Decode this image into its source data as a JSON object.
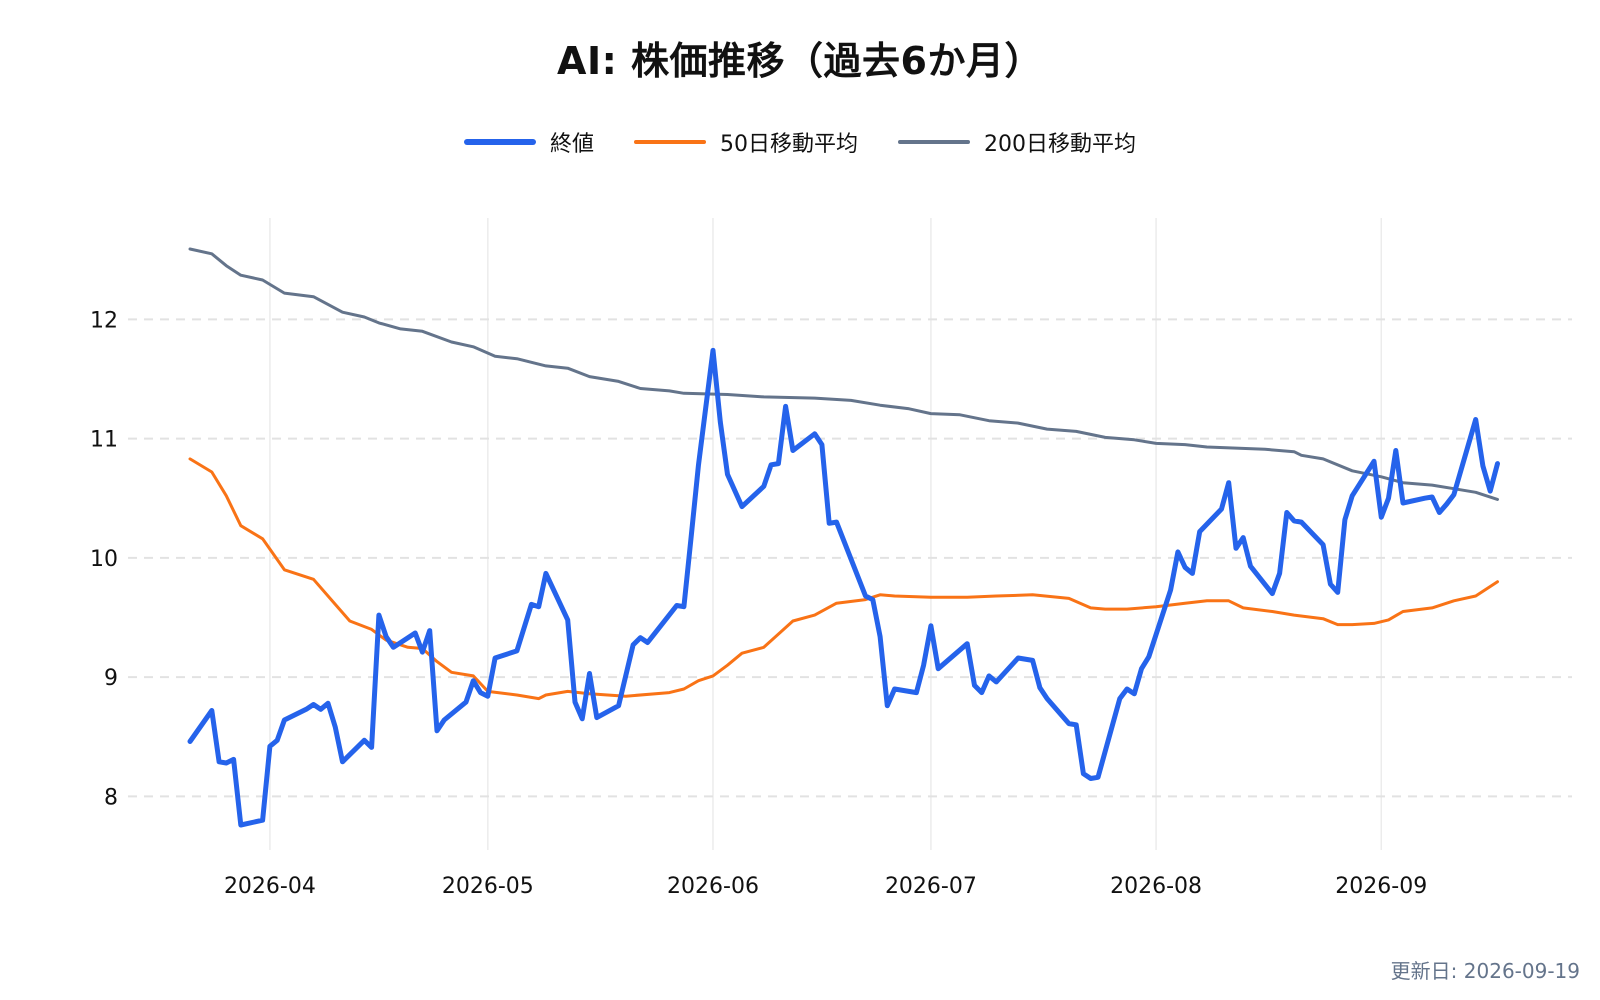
{
  "title": "AI: 株価推移（過去6か月）",
  "updated": "更新日: 2026-09-19",
  "chart_data": {
    "type": "line",
    "title": "AI: 株価推移（過去6か月）",
    "xlabel": "",
    "ylabel": "",
    "x_range": [
      "2026-03-21",
      "2026-09-19"
    ],
    "ylim": [
      7.55,
      12.85
    ],
    "yticks": [
      8,
      9,
      10,
      11,
      12
    ],
    "xticks": [
      {
        "date": "2026-04-01",
        "label": "2026-04"
      },
      {
        "date": "2026-05-01",
        "label": "2026-05"
      },
      {
        "date": "2026-06-01",
        "label": "2026-06"
      },
      {
        "date": "2026-07-01",
        "label": "2026-07"
      },
      {
        "date": "2026-08-01",
        "label": "2026-08"
      },
      {
        "date": "2026-09-01",
        "label": "2026-09"
      }
    ],
    "grid": true,
    "legend_position": "top-center",
    "series": [
      {
        "name": "終値",
        "color": "#2563eb",
        "width": 5,
        "points": [
          [
            "2026-03-21",
            8.46
          ],
          [
            "2026-03-24",
            8.72
          ],
          [
            "2026-03-25",
            8.29
          ],
          [
            "2026-03-26",
            8.28
          ],
          [
            "2026-03-27",
            8.31
          ],
          [
            "2026-03-28",
            7.76
          ],
          [
            "2026-03-31",
            7.8
          ],
          [
            "2026-04-01",
            8.42
          ],
          [
            "2026-04-02",
            8.47
          ],
          [
            "2026-04-03",
            8.64
          ],
          [
            "2026-04-06",
            8.73
          ],
          [
            "2026-04-07",
            8.77
          ],
          [
            "2026-04-08",
            8.73
          ],
          [
            "2026-04-09",
            8.78
          ],
          [
            "2026-04-10",
            8.58
          ],
          [
            "2026-04-11",
            8.29
          ],
          [
            "2026-04-14",
            8.47
          ],
          [
            "2026-04-15",
            8.41
          ],
          [
            "2026-04-16",
            9.52
          ],
          [
            "2026-04-17",
            9.34
          ],
          [
            "2026-04-18",
            9.25
          ],
          [
            "2026-04-21",
            9.37
          ],
          [
            "2026-04-22",
            9.21
          ],
          [
            "2026-04-23",
            9.39
          ],
          [
            "2026-04-24",
            8.55
          ],
          [
            "2026-04-25",
            8.64
          ],
          [
            "2026-04-28",
            8.79
          ],
          [
            "2026-04-29",
            8.97
          ],
          [
            "2026-04-30",
            8.87
          ],
          [
            "2026-05-01",
            8.84
          ],
          [
            "2026-05-02",
            9.16
          ],
          [
            "2026-05-05",
            9.22
          ],
          [
            "2026-05-07",
            9.61
          ],
          [
            "2026-05-08",
            9.59
          ],
          [
            "2026-05-09",
            9.87
          ],
          [
            "2026-05-12",
            9.48
          ],
          [
            "2026-05-13",
            8.79
          ],
          [
            "2026-05-14",
            8.65
          ],
          [
            "2026-05-15",
            9.03
          ],
          [
            "2026-05-16",
            8.66
          ],
          [
            "2026-05-19",
            8.76
          ],
          [
            "2026-05-21",
            9.27
          ],
          [
            "2026-05-22",
            9.33
          ],
          [
            "2026-05-23",
            9.29
          ],
          [
            "2026-05-27",
            9.6
          ],
          [
            "2026-05-28",
            9.59
          ],
          [
            "2026-05-29",
            10.18
          ],
          [
            "2026-05-30",
            10.78
          ],
          [
            "2026-06-01",
            11.74
          ],
          [
            "2026-06-02",
            11.14
          ],
          [
            "2026-06-03",
            10.7
          ],
          [
            "2026-06-05",
            10.43
          ],
          [
            "2026-06-08",
            10.6
          ],
          [
            "2026-06-09",
            10.78
          ],
          [
            "2026-06-10",
            10.79
          ],
          [
            "2026-06-11",
            11.27
          ],
          [
            "2026-06-12",
            10.9
          ],
          [
            "2026-06-15",
            11.04
          ],
          [
            "2026-06-16",
            10.95
          ],
          [
            "2026-06-17",
            10.29
          ],
          [
            "2026-06-18",
            10.3
          ],
          [
            "2026-06-22",
            9.68
          ],
          [
            "2026-06-23",
            9.65
          ],
          [
            "2026-06-24",
            9.34
          ],
          [
            "2026-06-25",
            8.76
          ],
          [
            "2026-06-26",
            8.9
          ],
          [
            "2026-06-29",
            8.87
          ],
          [
            "2026-06-30",
            9.1
          ],
          [
            "2026-07-01",
            9.43
          ],
          [
            "2026-07-02",
            9.07
          ],
          [
            "2026-07-06",
            9.28
          ],
          [
            "2026-07-07",
            8.93
          ],
          [
            "2026-07-08",
            8.87
          ],
          [
            "2026-07-09",
            9.01
          ],
          [
            "2026-07-10",
            8.96
          ],
          [
            "2026-07-13",
            9.16
          ],
          [
            "2026-07-15",
            9.14
          ],
          [
            "2026-07-16",
            8.91
          ],
          [
            "2026-07-17",
            8.82
          ],
          [
            "2026-07-20",
            8.61
          ],
          [
            "2026-07-21",
            8.6
          ],
          [
            "2026-07-22",
            8.19
          ],
          [
            "2026-07-23",
            8.15
          ],
          [
            "2026-07-24",
            8.16
          ],
          [
            "2026-07-27",
            8.82
          ],
          [
            "2026-07-28",
            8.9
          ],
          [
            "2026-07-29",
            8.86
          ],
          [
            "2026-07-30",
            9.07
          ],
          [
            "2026-07-31",
            9.17
          ],
          [
            "2026-08-03",
            9.73
          ],
          [
            "2026-08-04",
            10.05
          ],
          [
            "2026-08-05",
            9.92
          ],
          [
            "2026-08-06",
            9.87
          ],
          [
            "2026-08-07",
            10.22
          ],
          [
            "2026-08-10",
            10.41
          ],
          [
            "2026-08-11",
            10.63
          ],
          [
            "2026-08-12",
            10.08
          ],
          [
            "2026-08-13",
            10.17
          ],
          [
            "2026-08-14",
            9.93
          ],
          [
            "2026-08-17",
            9.7
          ],
          [
            "2026-08-18",
            9.87
          ],
          [
            "2026-08-19",
            10.38
          ],
          [
            "2026-08-20",
            10.31
          ],
          [
            "2026-08-21",
            10.3
          ],
          [
            "2026-08-24",
            10.11
          ],
          [
            "2026-08-25",
            9.78
          ],
          [
            "2026-08-26",
            9.71
          ],
          [
            "2026-08-27",
            10.32
          ],
          [
            "2026-08-28",
            10.52
          ],
          [
            "2026-08-31",
            10.81
          ],
          [
            "2026-09-01",
            10.34
          ],
          [
            "2026-09-02",
            10.5
          ],
          [
            "2026-09-03",
            10.9
          ],
          [
            "2026-09-04",
            10.46
          ],
          [
            "2026-09-07",
            10.5
          ],
          [
            "2026-09-08",
            10.51
          ],
          [
            "2026-09-09",
            10.38
          ],
          [
            "2026-09-10",
            10.45
          ],
          [
            "2026-09-11",
            10.53
          ],
          [
            "2026-09-14",
            11.16
          ],
          [
            "2026-09-15",
            10.77
          ],
          [
            "2026-09-16",
            10.56
          ],
          [
            "2026-09-17",
            10.79
          ]
        ]
      },
      {
        "name": "50日移動平均",
        "color": "#f97316",
        "width": 3,
        "points": [
          [
            "2026-03-21",
            10.83
          ],
          [
            "2026-03-24",
            10.72
          ],
          [
            "2026-03-26",
            10.52
          ],
          [
            "2026-03-28",
            10.27
          ],
          [
            "2026-03-31",
            10.16
          ],
          [
            "2026-04-03",
            9.9
          ],
          [
            "2026-04-07",
            9.82
          ],
          [
            "2026-04-10",
            9.61
          ],
          [
            "2026-04-12",
            9.47
          ],
          [
            "2026-04-15",
            9.4
          ],
          [
            "2026-04-17",
            9.31
          ],
          [
            "2026-04-20",
            9.25
          ],
          [
            "2026-04-22",
            9.24
          ],
          [
            "2026-04-24",
            9.13
          ],
          [
            "2026-04-26",
            9.04
          ],
          [
            "2026-04-29",
            9.01
          ],
          [
            "2026-05-01",
            8.88
          ],
          [
            "2026-05-05",
            8.85
          ],
          [
            "2026-05-08",
            8.82
          ],
          [
            "2026-05-09",
            8.85
          ],
          [
            "2026-05-12",
            8.88
          ],
          [
            "2026-05-15",
            8.86
          ],
          [
            "2026-05-20",
            8.84
          ],
          [
            "2026-05-26",
            8.87
          ],
          [
            "2026-05-28",
            8.9
          ],
          [
            "2026-05-30",
            8.97
          ],
          [
            "2026-06-01",
            9.01
          ],
          [
            "2026-06-03",
            9.1
          ],
          [
            "2026-06-05",
            9.2
          ],
          [
            "2026-06-08",
            9.25
          ],
          [
            "2026-06-12",
            9.47
          ],
          [
            "2026-06-15",
            9.52
          ],
          [
            "2026-06-18",
            9.62
          ],
          [
            "2026-06-22",
            9.65
          ],
          [
            "2026-06-24",
            9.69
          ],
          [
            "2026-06-26",
            9.68
          ],
          [
            "2026-07-01",
            9.67
          ],
          [
            "2026-07-06",
            9.67
          ],
          [
            "2026-07-10",
            9.68
          ],
          [
            "2026-07-15",
            9.69
          ],
          [
            "2026-07-20",
            9.66
          ],
          [
            "2026-07-23",
            9.58
          ],
          [
            "2026-07-25",
            9.57
          ],
          [
            "2026-07-28",
            9.57
          ],
          [
            "2026-08-01",
            9.59
          ],
          [
            "2026-08-05",
            9.62
          ],
          [
            "2026-08-08",
            9.64
          ],
          [
            "2026-08-11",
            9.64
          ],
          [
            "2026-08-13",
            9.58
          ],
          [
            "2026-08-17",
            9.55
          ],
          [
            "2026-08-20",
            9.52
          ],
          [
            "2026-08-24",
            9.49
          ],
          [
            "2026-08-26",
            9.44
          ],
          [
            "2026-08-28",
            9.44
          ],
          [
            "2026-08-31",
            9.45
          ],
          [
            "2026-09-02",
            9.48
          ],
          [
            "2026-09-04",
            9.55
          ],
          [
            "2026-09-08",
            9.58
          ],
          [
            "2026-09-11",
            9.64
          ],
          [
            "2026-09-14",
            9.68
          ],
          [
            "2026-09-17",
            9.8
          ]
        ]
      },
      {
        "name": "200日移動平均",
        "color": "#64748b",
        "width": 3,
        "points": [
          [
            "2026-03-21",
            12.59
          ],
          [
            "2026-03-24",
            12.55
          ],
          [
            "2026-03-26",
            12.45
          ],
          [
            "2026-03-28",
            12.37
          ],
          [
            "2026-03-31",
            12.33
          ],
          [
            "2026-04-03",
            12.22
          ],
          [
            "2026-04-07",
            12.19
          ],
          [
            "2026-04-11",
            12.06
          ],
          [
            "2026-04-14",
            12.02
          ],
          [
            "2026-04-16",
            11.97
          ],
          [
            "2026-04-19",
            11.92
          ],
          [
            "2026-04-22",
            11.9
          ],
          [
            "2026-04-26",
            11.81
          ],
          [
            "2026-04-29",
            11.77
          ],
          [
            "2026-05-02",
            11.69
          ],
          [
            "2026-05-05",
            11.67
          ],
          [
            "2026-05-09",
            11.61
          ],
          [
            "2026-05-12",
            11.59
          ],
          [
            "2026-05-15",
            11.52
          ],
          [
            "2026-05-19",
            11.48
          ],
          [
            "2026-05-22",
            11.42
          ],
          [
            "2026-05-26",
            11.4
          ],
          [
            "2026-05-28",
            11.38
          ],
          [
            "2026-06-03",
            11.37
          ],
          [
            "2026-06-08",
            11.35
          ],
          [
            "2026-06-15",
            11.34
          ],
          [
            "2026-06-20",
            11.32
          ],
          [
            "2026-06-24",
            11.28
          ],
          [
            "2026-06-28",
            11.25
          ],
          [
            "2026-07-01",
            11.21
          ],
          [
            "2026-07-05",
            11.2
          ],
          [
            "2026-07-09",
            11.15
          ],
          [
            "2026-07-13",
            11.13
          ],
          [
            "2026-07-17",
            11.08
          ],
          [
            "2026-07-21",
            11.06
          ],
          [
            "2026-07-25",
            11.01
          ],
          [
            "2026-07-29",
            10.99
          ],
          [
            "2026-08-01",
            10.96
          ],
          [
            "2026-08-05",
            10.95
          ],
          [
            "2026-08-08",
            10.93
          ],
          [
            "2026-08-12",
            10.92
          ],
          [
            "2026-08-16",
            10.91
          ],
          [
            "2026-08-20",
            10.89
          ],
          [
            "2026-08-21",
            10.86
          ],
          [
            "2026-08-24",
            10.83
          ],
          [
            "2026-08-28",
            10.73
          ],
          [
            "2026-09-01",
            10.68
          ],
          [
            "2026-09-04",
            10.63
          ],
          [
            "2026-09-08",
            10.61
          ],
          [
            "2026-09-11",
            10.58
          ],
          [
            "2026-09-14",
            10.55
          ],
          [
            "2026-09-17",
            10.49
          ]
        ]
      }
    ]
  }
}
